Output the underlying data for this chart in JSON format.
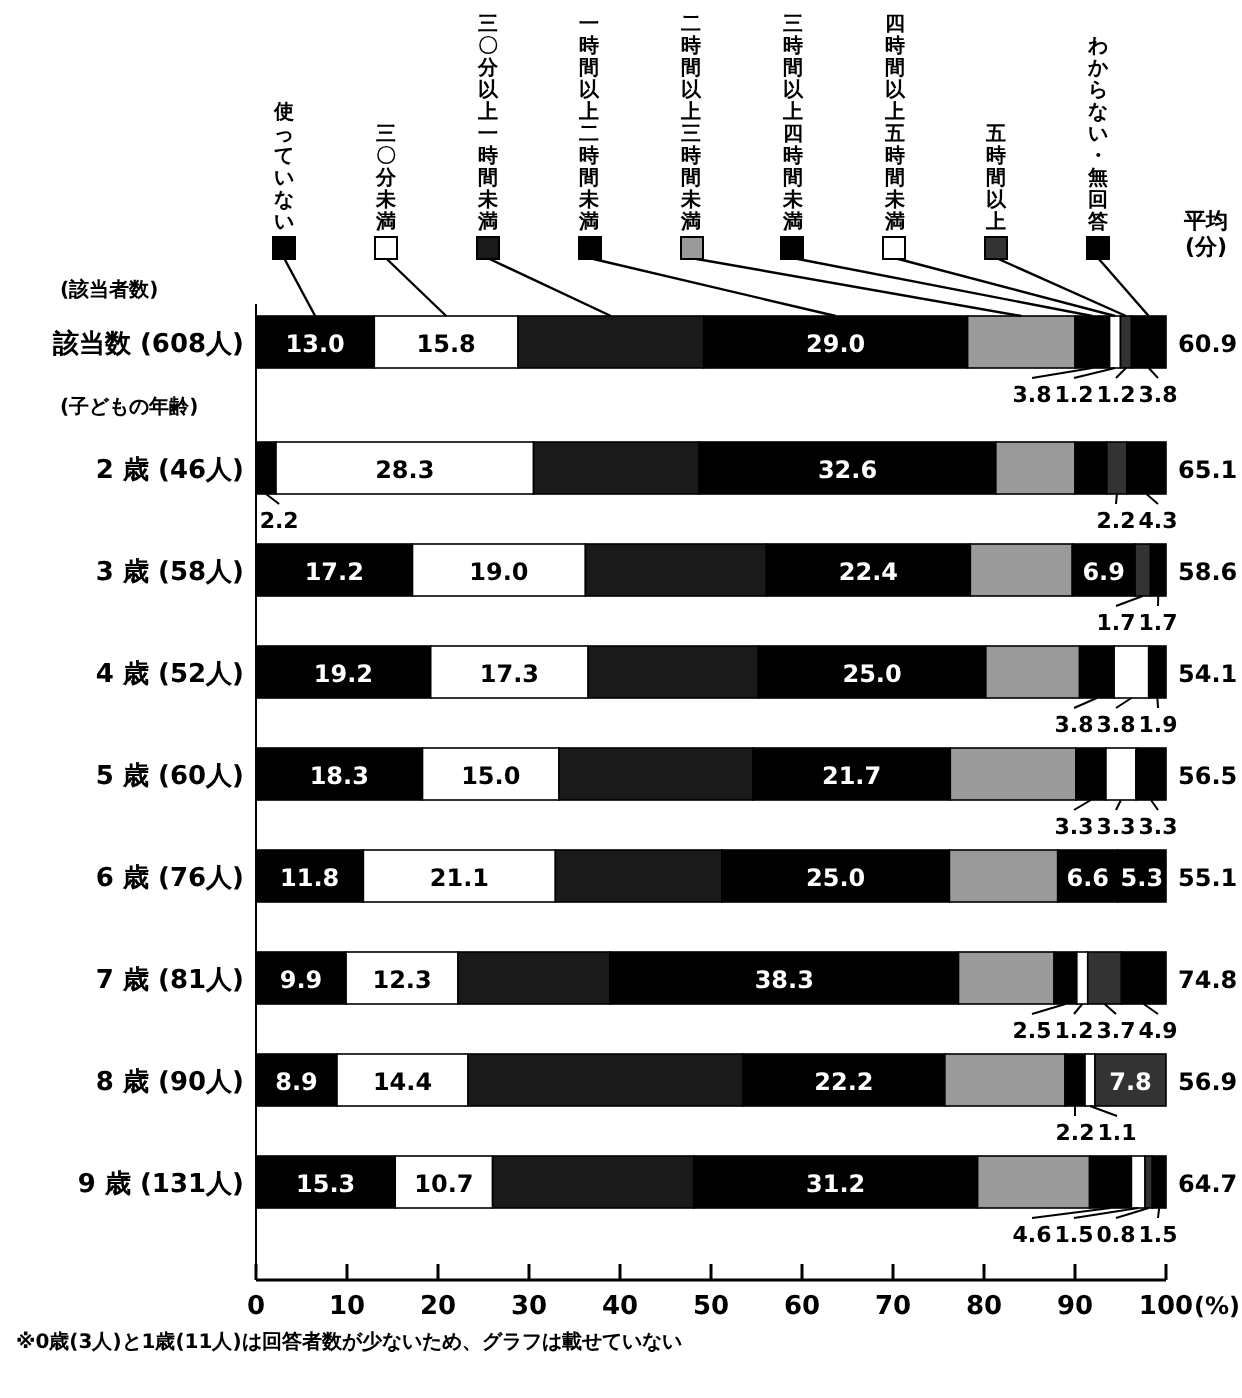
{
  "chart_data": {
    "type": "bar",
    "orientation": "horizontal",
    "stacked": true,
    "legend": "top",
    "xlabel": "(%)",
    "xlim": [
      0,
      100
    ],
    "xticks": [
      0,
      10,
      20,
      30,
      40,
      50,
      60,
      70,
      80,
      90,
      100
    ],
    "categories": [
      "該当数 (608人)",
      "2 歳 (46人)",
      "3 歳 (58人)",
      "4 歳 (52人)",
      "5 歳 (60人)",
      "6 歳 (76人)",
      "7 歳 (81人)",
      "8 歳 (90人)",
      "9 歳 (131人)"
    ],
    "series": [
      {
        "name": "使っていない",
        "color": "#000000",
        "values": [
          13.0,
          2.2,
          17.2,
          19.2,
          18.3,
          11.8,
          9.9,
          8.9,
          15.3
        ],
        "value_labels": [
          "13.0",
          "2.2",
          "17.2",
          "19.2",
          "18.3",
          "11.8",
          "9.9",
          "8.9",
          "15.3"
        ]
      },
      {
        "name": "三〇分未満",
        "color": "#ffffff",
        "values": [
          15.8,
          28.3,
          19.0,
          17.3,
          15.0,
          21.1,
          12.3,
          14.4,
          10.7
        ],
        "value_labels": [
          "15.8",
          "28.3",
          "19.0",
          "17.3",
          "15.0",
          "21.1",
          "12.3",
          "14.4",
          "10.7"
        ]
      },
      {
        "name": "三〇分以上一時間未満",
        "color": "#1a1a1a",
        "values": [
          20.4,
          18.2,
          19.9,
          18.7,
          21.3,
          18.3,
          16.7,
          30.2,
          22.1
        ],
        "value_labels": [
          null,
          null,
          null,
          null,
          null,
          null,
          null,
          null,
          null
        ]
      },
      {
        "name": "一時間以上二時間未満",
        "color": "#000000",
        "values": [
          29.0,
          32.6,
          22.4,
          25.0,
          21.7,
          25.0,
          38.3,
          22.2,
          31.2
        ],
        "value_labels": [
          "29.0",
          "32.6",
          "22.4",
          "25.0",
          "21.7",
          "25.0",
          "38.3",
          "22.2",
          "31.2"
        ]
      },
      {
        "name": "二時間以上三時間未満",
        "color": "#9a9a9a",
        "values": [
          11.8,
          8.7,
          11.2,
          10.3,
          13.8,
          11.9,
          10.5,
          13.2,
          12.3
        ],
        "value_labels": [
          null,
          null,
          null,
          null,
          null,
          null,
          null,
          null,
          null
        ]
      },
      {
        "name": "三時間以上四時間未満",
        "color": "#000000",
        "values": [
          3.8,
          3.5,
          6.9,
          3.8,
          3.3,
          6.6,
          2.5,
          2.2,
          4.6
        ],
        "value_labels": [
          "3.8",
          null,
          "6.9",
          "3.8",
          "3.3",
          "6.6",
          "2.5",
          "2.2",
          "4.6"
        ]
      },
      {
        "name": "四時間以上五時間未満",
        "color": "#ffffff",
        "values": [
          1.2,
          0,
          0,
          3.8,
          3.3,
          0,
          1.2,
          1.1,
          1.5
        ],
        "value_labels": [
          "1.2",
          null,
          null,
          "3.8",
          "3.3",
          null,
          "1.2",
          "1.1",
          "1.5"
        ]
      },
      {
        "name": "五時間以上",
        "color": "#333333",
        "values": [
          1.2,
          2.2,
          1.7,
          0,
          0,
          0,
          3.7,
          7.8,
          0.8
        ],
        "value_labels": [
          "1.2",
          "2.2",
          "1.7",
          null,
          null,
          null,
          "3.7",
          "7.8",
          "0.8"
        ]
      },
      {
        "name": "わからない・無回答",
        "color": "#000000",
        "values": [
          3.8,
          4.3,
          1.7,
          1.9,
          3.3,
          5.3,
          4.9,
          0,
          1.5
        ],
        "value_labels": [
          "3.8",
          "4.3",
          "1.7",
          "1.9",
          "3.3",
          "5.3",
          "4.9",
          null,
          "1.5"
        ]
      }
    ],
    "annotations": [
      "(該当者数)",
      "(子どもの年齢)",
      "平均(分)",
      "※0歳(3人)と1歳(11人)は回答者数が少ないため、グラフは載せていない",
      "60.9",
      "65.1",
      "58.6",
      "54.1",
      "56.5",
      "55.1",
      "74.8",
      "56.9",
      "64.7"
    ]
  }
}
